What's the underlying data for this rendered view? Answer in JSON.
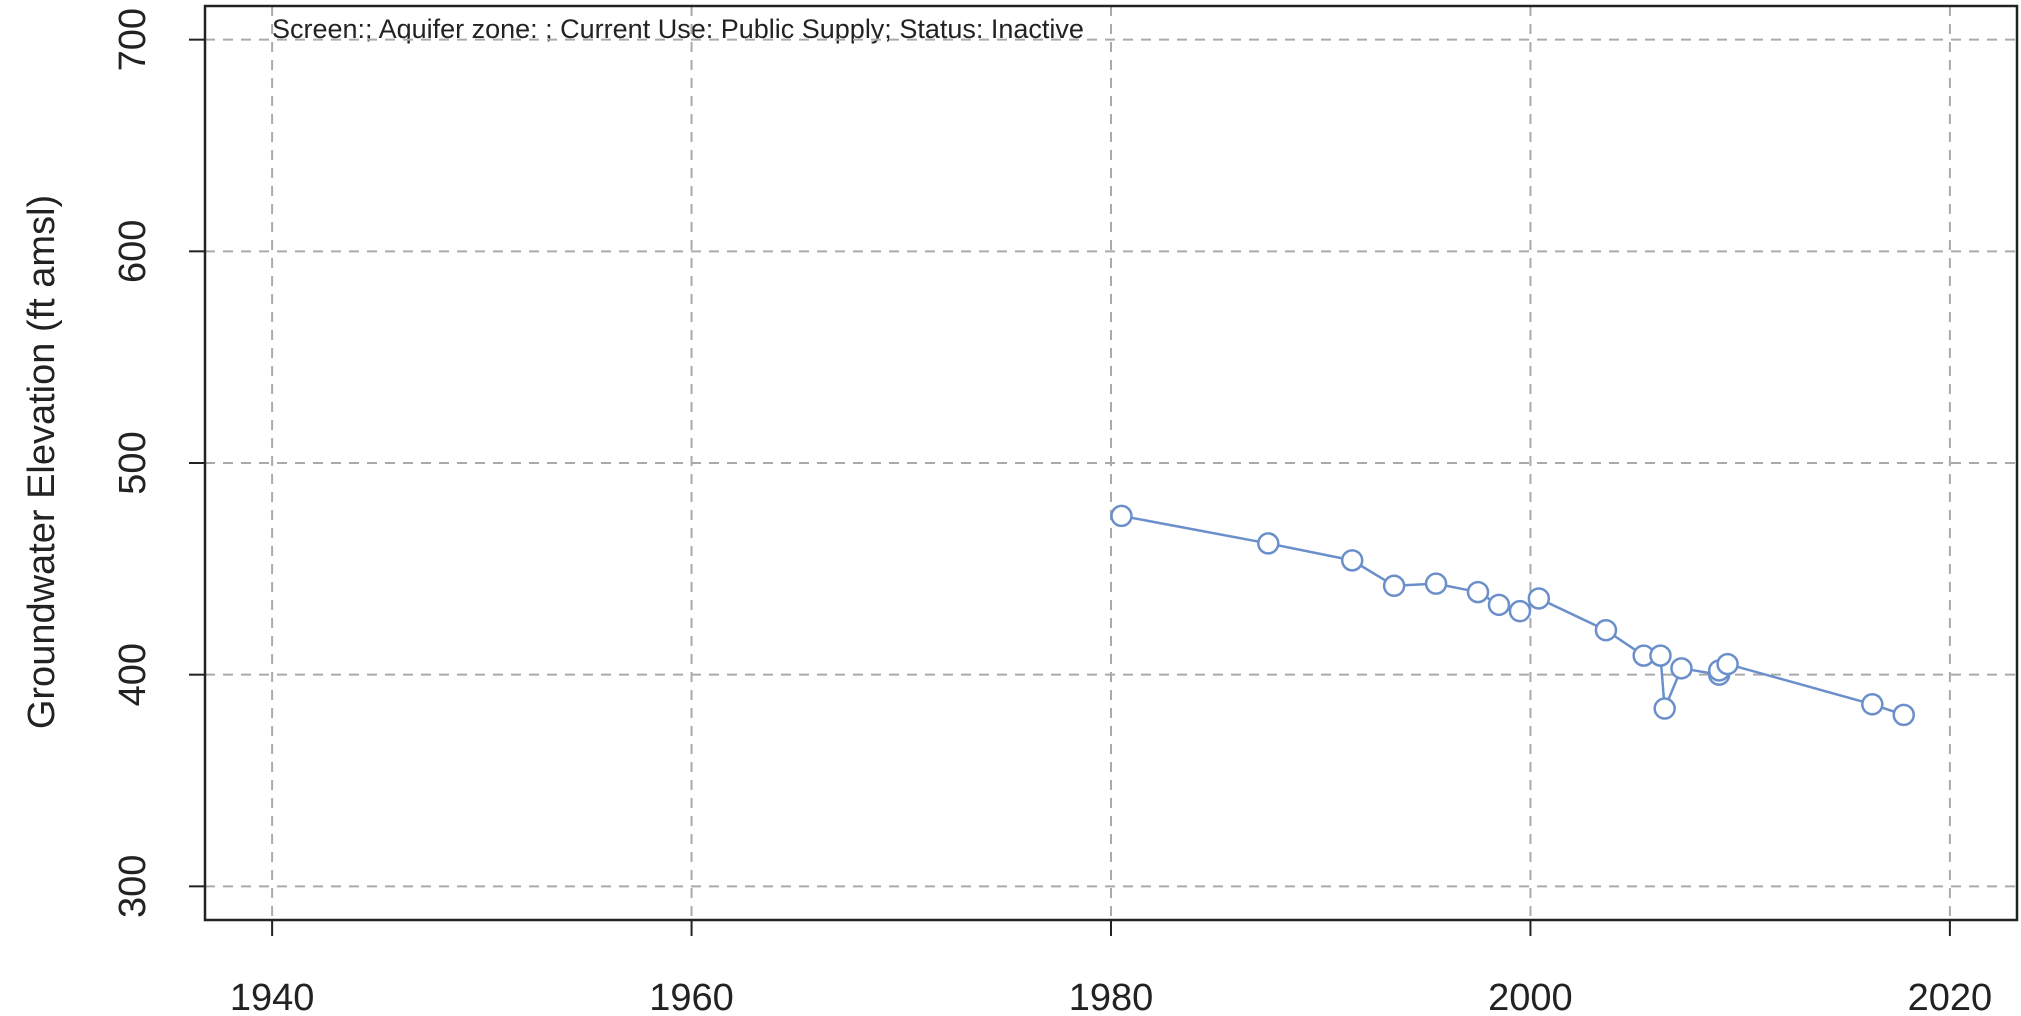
{
  "chart_data": {
    "type": "line",
    "annotation": "Screen:; Aquifer zone: ; Current Use: Public Supply; Status: Inactive",
    "ylabel": "Groundwater Elevation (ft amsl)",
    "x": [
      1980.5,
      1987.5,
      1991.5,
      1993.5,
      1995.5,
      1997.5,
      1998.5,
      1999.5,
      2000.4,
      2003.6,
      2005.4,
      2006.2,
      2006.4,
      2007.2,
      2009.0,
      2009.0,
      2009.4,
      2016.3,
      2017.8
    ],
    "series": [
      {
        "name": "Groundwater Elevation",
        "color": "#6a8fca",
        "values": [
          475,
          462,
          454,
          442,
          443,
          439,
          433,
          430,
          436,
          421,
          409,
          409,
          384,
          403,
          400,
          402,
          405,
          386,
          381
        ]
      }
    ],
    "xlim": [
      1936.8,
      2023.2
    ],
    "xticks": [
      1940,
      1960,
      1980,
      2000,
      2020
    ],
    "ylim": [
      284.1,
      715.9
    ],
    "yticks": [
      300,
      400,
      500,
      600,
      700
    ],
    "grid": true,
    "marker": "circle"
  }
}
